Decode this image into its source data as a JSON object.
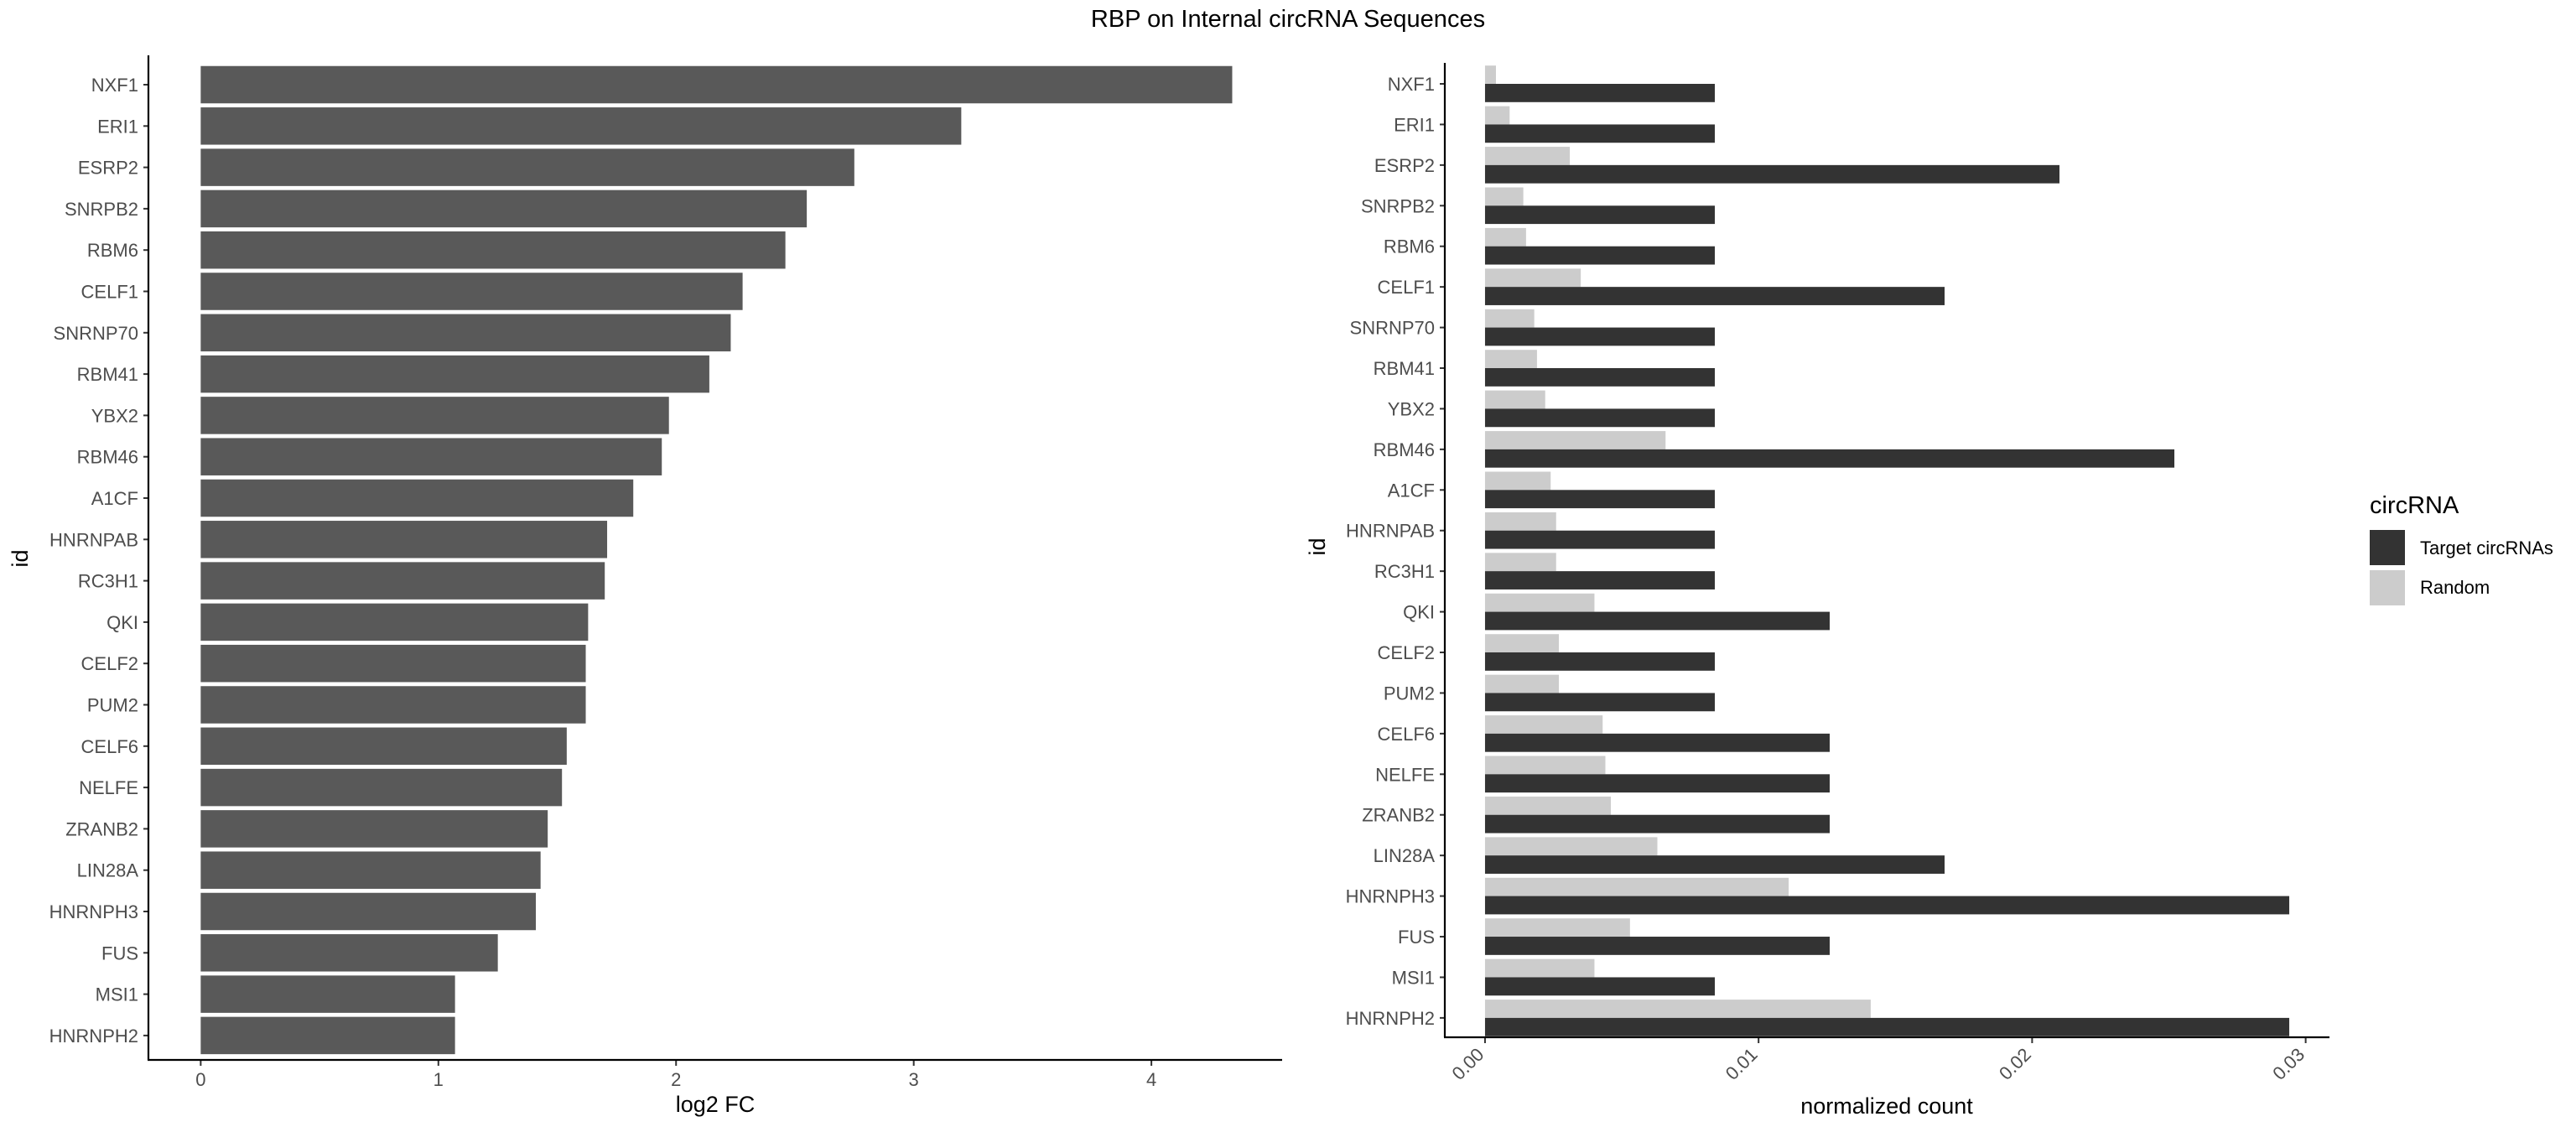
{
  "title": "RBP on Internal circRNA Sequences",
  "chart_data": [
    {
      "type": "bar",
      "orientation": "horizontal",
      "categories": [
        "NXF1",
        "ERI1",
        "ESRP2",
        "SNRPB2",
        "RBM6",
        "CELF1",
        "SNRNP70",
        "RBM41",
        "YBX2",
        "RBM46",
        "A1CF",
        "HNRNPAB",
        "RC3H1",
        "QKI",
        "CELF2",
        "PUM2",
        "CELF6",
        "NELFE",
        "ZRANB2",
        "LIN28A",
        "HNRNPH3",
        "FUS",
        "MSI1",
        "HNRNPH2"
      ],
      "values": [
        4.34,
        3.2,
        2.75,
        2.55,
        2.46,
        2.28,
        2.23,
        2.14,
        1.97,
        1.94,
        1.82,
        1.71,
        1.7,
        1.63,
        1.62,
        1.62,
        1.54,
        1.52,
        1.46,
        1.43,
        1.41,
        1.25,
        1.07,
        1.07
      ],
      "xlabel": "log2 FC",
      "ylabel": "id",
      "xlim": [
        -0.22,
        4.55
      ],
      "xticks": [
        "0",
        "1",
        "2",
        "3",
        "4"
      ],
      "bar_color": "#595959"
    },
    {
      "type": "bar",
      "orientation": "horizontal",
      "grouped": true,
      "categories": [
        "NXF1",
        "ERI1",
        "ESRP2",
        "SNRPB2",
        "RBM6",
        "CELF1",
        "SNRNP70",
        "RBM41",
        "YBX2",
        "RBM46",
        "A1CF",
        "HNRNPAB",
        "RC3H1",
        "QKI",
        "CELF2",
        "PUM2",
        "CELF6",
        "NELFE",
        "ZRANB2",
        "LIN28A",
        "HNRNPH3",
        "FUS",
        "MSI1",
        "HNRNPH2"
      ],
      "series": [
        {
          "name": "Target circRNAs",
          "color": "#333333",
          "values": [
            0.0084,
            0.0084,
            0.021,
            0.0084,
            0.0084,
            0.0168,
            0.0084,
            0.0084,
            0.0084,
            0.0252,
            0.0084,
            0.0084,
            0.0084,
            0.0126,
            0.0084,
            0.0084,
            0.0126,
            0.0126,
            0.0126,
            0.0168,
            0.0294,
            0.0126,
            0.0084,
            0.0294
          ]
        },
        {
          "name": "Random",
          "color": "#cccccc",
          "values": [
            0.0004,
            0.0009,
            0.0031,
            0.0014,
            0.0015,
            0.0035,
            0.0018,
            0.0019,
            0.0022,
            0.0066,
            0.0024,
            0.0026,
            0.0026,
            0.004,
            0.0027,
            0.0027,
            0.0043,
            0.0044,
            0.0046,
            0.0063,
            0.0111,
            0.0053,
            0.004,
            0.0141
          ]
        }
      ],
      "xlabel": "normalized count",
      "ylabel": "id",
      "xlim": [
        -0.00147,
        0.03087
      ],
      "xticks": [
        "0.00",
        "0.01",
        "0.02",
        "0.03"
      ],
      "legend": {
        "title": "circRNA",
        "position": "right"
      }
    }
  ]
}
